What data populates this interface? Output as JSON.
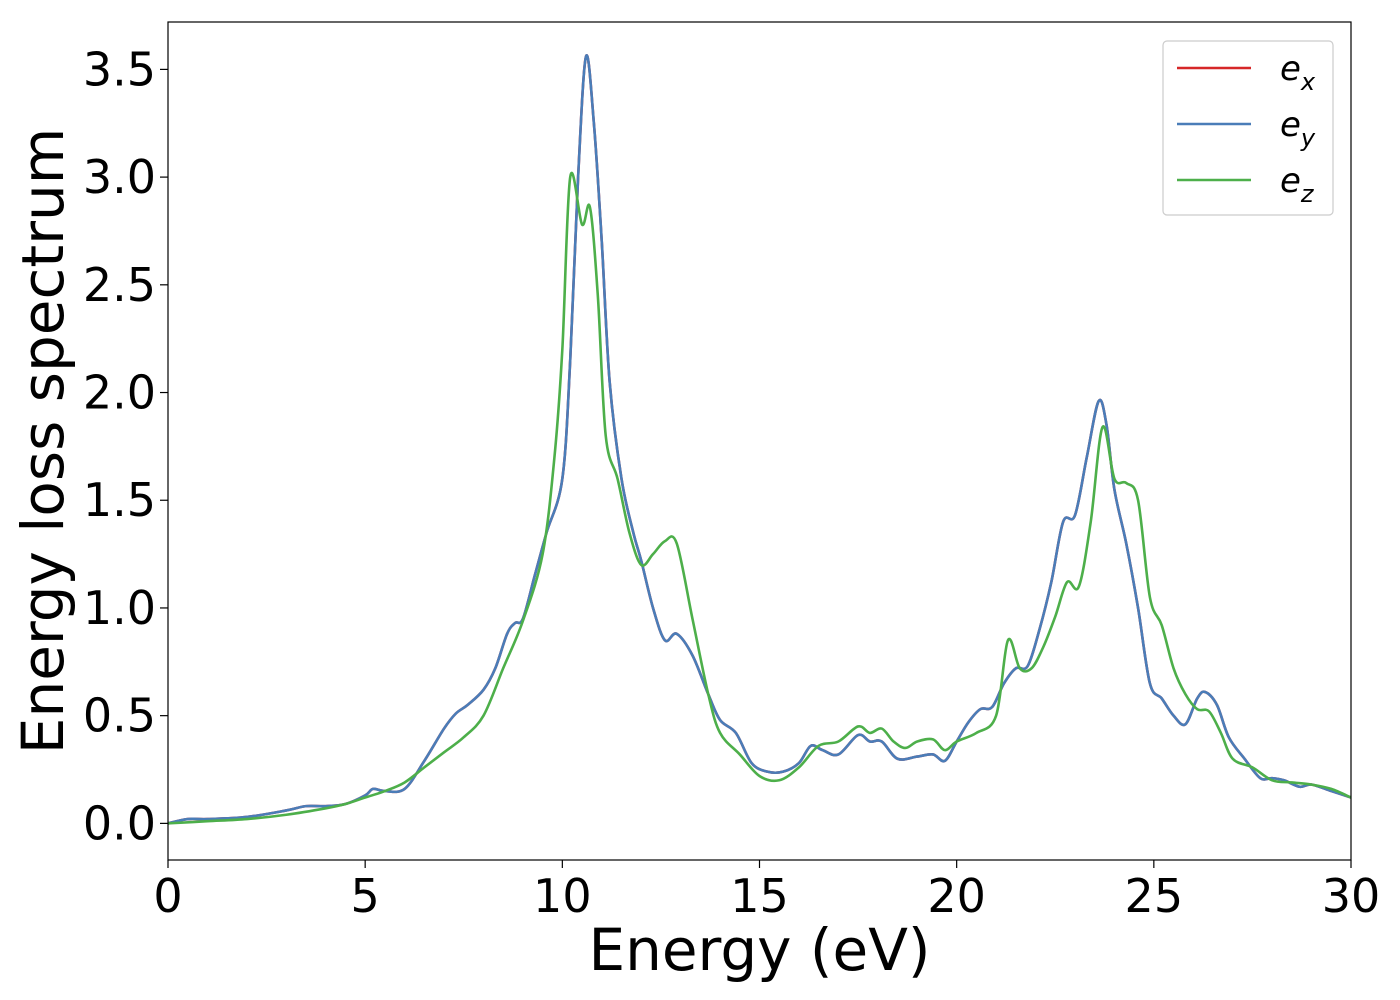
{
  "chart_data": {
    "type": "line",
    "title": "",
    "xlabel": "Energy (eV)",
    "ylabel": "Energy loss spectrum",
    "xlim": [
      0,
      30
    ],
    "ylim": [
      -0.17,
      3.72
    ],
    "xticks": [
      0,
      5,
      10,
      15,
      20,
      25,
      30
    ],
    "xtick_labels": [
      "0",
      "5",
      "10",
      "15",
      "20",
      "25",
      "30"
    ],
    "yticks": [
      0.0,
      0.5,
      1.0,
      1.5,
      2.0,
      2.5,
      3.0,
      3.5
    ],
    "ytick_labels": [
      "0.0",
      "0.5",
      "1.0",
      "1.5",
      "2.0",
      "2.5",
      "3.0",
      "3.5"
    ],
    "grid": false,
    "legend_position": "top-right",
    "series": [
      {
        "name": "e_x",
        "legend_base": "e",
        "legend_sub": "x",
        "color": "#d62728",
        "x": [
          0,
          0.5,
          1,
          2,
          3,
          3.5,
          4,
          4.5,
          5,
          5.2,
          5.5,
          6,
          6.5,
          7,
          7.3,
          7.6,
          8,
          8.3,
          8.6,
          8.8,
          9,
          9.3,
          9.6,
          10,
          10.2,
          10.4,
          10.6,
          10.8,
          11,
          11.2,
          11.5,
          11.8,
          12,
          12.3,
          12.6,
          12.9,
          13.3,
          13.7,
          14,
          14.4,
          14.8,
          15.2,
          15.6,
          16,
          16.3,
          16.6,
          17,
          17.5,
          17.8,
          18.1,
          18.5,
          19,
          19.4,
          19.7,
          20,
          20.3,
          20.6,
          20.9,
          21.2,
          21.5,
          21.8,
          22.1,
          22.4,
          22.7,
          23,
          23.3,
          23.6,
          23.8,
          24,
          24.3,
          24.6,
          24.9,
          25.2,
          25.5,
          25.8,
          26.1,
          26.3,
          26.6,
          26.9,
          27.3,
          27.7,
          28,
          28.3,
          28.7,
          29,
          29.5,
          30
        ],
        "values": [
          0.0,
          0.02,
          0.02,
          0.03,
          0.06,
          0.08,
          0.08,
          0.09,
          0.13,
          0.16,
          0.15,
          0.16,
          0.29,
          0.44,
          0.51,
          0.55,
          0.62,
          0.72,
          0.88,
          0.93,
          0.95,
          1.15,
          1.35,
          1.6,
          2.15,
          3.0,
          3.56,
          3.25,
          2.7,
          2.05,
          1.6,
          1.35,
          1.22,
          1.0,
          0.85,
          0.88,
          0.78,
          0.6,
          0.48,
          0.42,
          0.28,
          0.24,
          0.24,
          0.28,
          0.36,
          0.34,
          0.32,
          0.41,
          0.38,
          0.38,
          0.3,
          0.31,
          0.32,
          0.29,
          0.38,
          0.47,
          0.53,
          0.54,
          0.65,
          0.72,
          0.73,
          0.9,
          1.12,
          1.4,
          1.43,
          1.7,
          1.96,
          1.85,
          1.55,
          1.3,
          1.0,
          0.65,
          0.58,
          0.5,
          0.46,
          0.58,
          0.61,
          0.55,
          0.4,
          0.3,
          0.21,
          0.21,
          0.2,
          0.17,
          0.18,
          0.15,
          0.12
        ]
      },
      {
        "name": "e_y",
        "legend_base": "e",
        "legend_sub": "y",
        "color": "#4a7db8",
        "x": [
          0,
          0.5,
          1,
          2,
          3,
          3.5,
          4,
          4.5,
          5,
          5.2,
          5.5,
          6,
          6.5,
          7,
          7.3,
          7.6,
          8,
          8.3,
          8.6,
          8.8,
          9,
          9.3,
          9.6,
          10,
          10.2,
          10.4,
          10.6,
          10.8,
          11,
          11.2,
          11.5,
          11.8,
          12,
          12.3,
          12.6,
          12.9,
          13.3,
          13.7,
          14,
          14.4,
          14.8,
          15.2,
          15.6,
          16,
          16.3,
          16.6,
          17,
          17.5,
          17.8,
          18.1,
          18.5,
          19,
          19.4,
          19.7,
          20,
          20.3,
          20.6,
          20.9,
          21.2,
          21.5,
          21.8,
          22.1,
          22.4,
          22.7,
          23,
          23.3,
          23.6,
          23.8,
          24,
          24.3,
          24.6,
          24.9,
          25.2,
          25.5,
          25.8,
          26.1,
          26.3,
          26.6,
          26.9,
          27.3,
          27.7,
          28,
          28.3,
          28.7,
          29,
          29.5,
          30
        ],
        "values": [
          0.0,
          0.02,
          0.02,
          0.03,
          0.06,
          0.08,
          0.08,
          0.09,
          0.13,
          0.16,
          0.15,
          0.16,
          0.29,
          0.44,
          0.51,
          0.55,
          0.62,
          0.72,
          0.88,
          0.93,
          0.95,
          1.15,
          1.35,
          1.6,
          2.15,
          3.0,
          3.56,
          3.25,
          2.7,
          2.05,
          1.6,
          1.35,
          1.22,
          1.0,
          0.85,
          0.88,
          0.78,
          0.6,
          0.48,
          0.42,
          0.28,
          0.24,
          0.24,
          0.28,
          0.36,
          0.34,
          0.32,
          0.41,
          0.38,
          0.38,
          0.3,
          0.31,
          0.32,
          0.29,
          0.38,
          0.47,
          0.53,
          0.54,
          0.65,
          0.72,
          0.73,
          0.9,
          1.12,
          1.4,
          1.43,
          1.7,
          1.96,
          1.85,
          1.55,
          1.3,
          1.0,
          0.65,
          0.58,
          0.5,
          0.46,
          0.58,
          0.61,
          0.55,
          0.4,
          0.3,
          0.21,
          0.21,
          0.2,
          0.17,
          0.18,
          0.15,
          0.12
        ]
      },
      {
        "name": "e_z",
        "legend_base": "e",
        "legend_sub": "z",
        "color": "#4daf4a",
        "x": [
          0,
          1,
          2,
          3,
          4,
          4.5,
          5,
          5.5,
          6,
          6.5,
          7,
          7.5,
          8,
          8.5,
          9,
          9.5,
          9.8,
          10,
          10.2,
          10.5,
          10.7,
          10.9,
          11.1,
          11.4,
          11.7,
          12,
          12.3,
          12.6,
          12.9,
          13.3,
          13.7,
          14,
          14.5,
          15,
          15.5,
          16,
          16.5,
          17,
          17.5,
          17.8,
          18.1,
          18.4,
          18.7,
          19,
          19.4,
          19.7,
          20,
          20.5,
          21,
          21.3,
          21.6,
          21.9,
          22.2,
          22.5,
          22.8,
          23.1,
          23.4,
          23.7,
          24,
          24.3,
          24.6,
          24.9,
          25.2,
          25.5,
          25.8,
          26.1,
          26.4,
          26.7,
          27,
          27.5,
          28,
          28.5,
          29,
          29.5,
          30
        ],
        "values": [
          0.0,
          0.01,
          0.02,
          0.04,
          0.07,
          0.09,
          0.12,
          0.15,
          0.19,
          0.26,
          0.33,
          0.4,
          0.5,
          0.72,
          0.94,
          1.25,
          1.7,
          2.2,
          3.0,
          2.78,
          2.86,
          2.45,
          1.8,
          1.6,
          1.35,
          1.2,
          1.25,
          1.31,
          1.3,
          0.95,
          0.6,
          0.42,
          0.32,
          0.22,
          0.2,
          0.26,
          0.36,
          0.38,
          0.45,
          0.42,
          0.44,
          0.38,
          0.35,
          0.38,
          0.39,
          0.34,
          0.38,
          0.42,
          0.5,
          0.85,
          0.72,
          0.72,
          0.82,
          0.96,
          1.12,
          1.1,
          1.4,
          1.84,
          1.6,
          1.58,
          1.5,
          1.05,
          0.92,
          0.72,
          0.6,
          0.53,
          0.52,
          0.42,
          0.3,
          0.26,
          0.2,
          0.19,
          0.18,
          0.16,
          0.12
        ]
      }
    ]
  }
}
